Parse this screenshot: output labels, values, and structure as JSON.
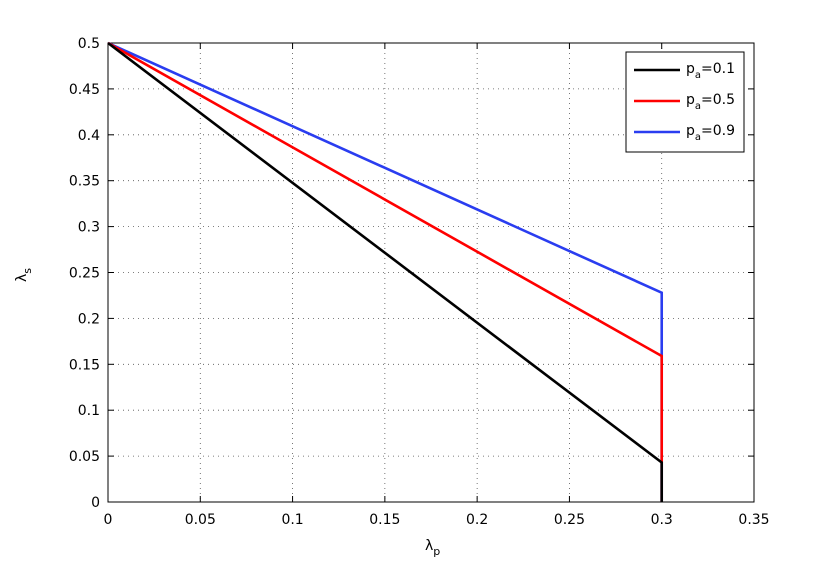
{
  "chart_data": {
    "type": "line",
    "xlabel": "λp",
    "ylabel": "λs",
    "x": [
      0,
      0.3,
      0.3
    ],
    "series": [
      {
        "name": "pa=0.1",
        "color": "#000000",
        "values": [
          0.5,
          0.043,
          0
        ]
      },
      {
        "name": "pa=0.5",
        "color": "#ff0000",
        "values": [
          0.5,
          0.159,
          0
        ]
      },
      {
        "name": "pa=0.9",
        "color": "#2a3df0",
        "values": [
          0.5,
          0.228,
          0
        ]
      }
    ],
    "xlim": [
      0,
      0.35
    ],
    "xticks": [
      0,
      0.05,
      0.1,
      0.15,
      0.2,
      0.25,
      0.3,
      0.35
    ],
    "ylim": [
      0,
      0.5
    ],
    "yticks": [
      0,
      0.05,
      0.1,
      0.15,
      0.2,
      0.25,
      0.3,
      0.35,
      0.4,
      0.45,
      0.5
    ],
    "grid": true,
    "legend": "upper right"
  }
}
